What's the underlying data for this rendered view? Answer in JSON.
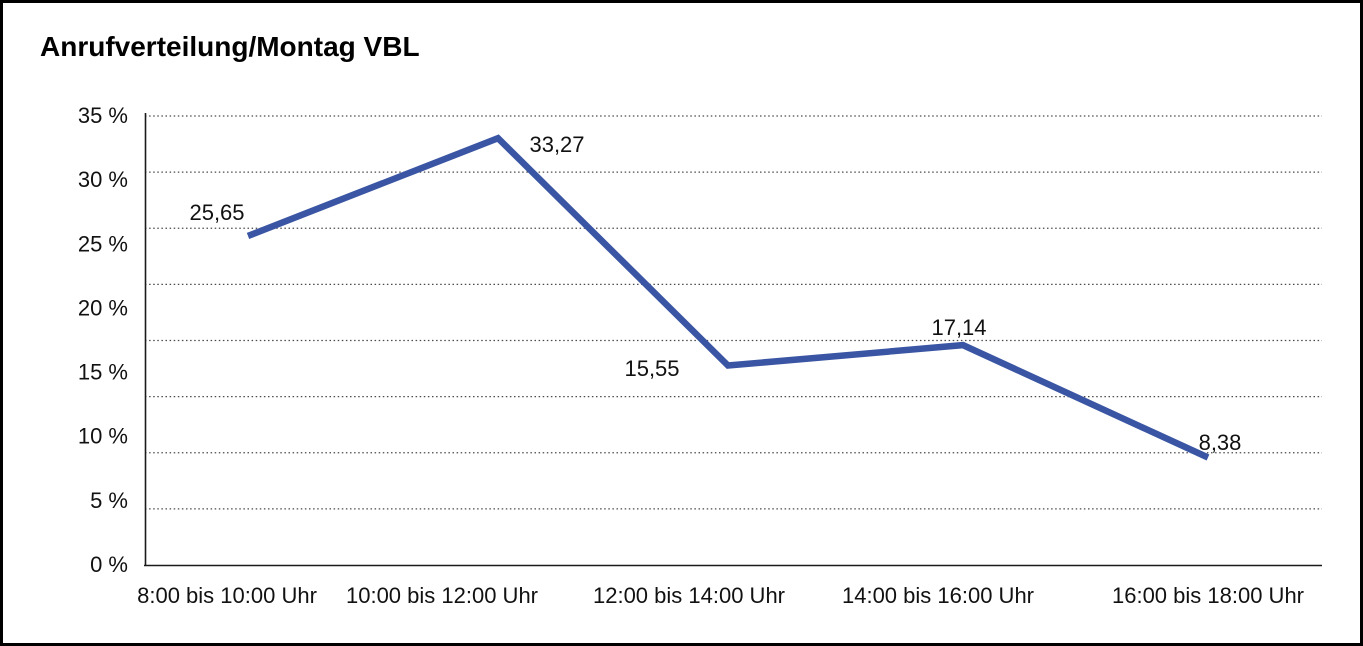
{
  "window": {
    "background_color": "#ffffff",
    "border_color": "#000000"
  },
  "chart_data": {
    "type": "line",
    "title": "Anrufverteilung/Montag VBL",
    "categories": [
      "8:00 bis 10:00 Uhr",
      "10:00 bis 12:00 Uhr",
      "12:00 bis 14:00 Uhr",
      "14:00 bis 16:00 Uhr",
      "16:00 bis 18:00 Uhr"
    ],
    "values": [
      25.65,
      33.27,
      15.55,
      17.14,
      8.38
    ],
    "point_labels": [
      "25,65",
      "33,27",
      "15,55",
      "17,14",
      "8,38"
    ],
    "y_tick_labels": [
      "35 %",
      "30 %",
      "25 %",
      "20 %",
      "15 %",
      "10 %",
      "5 %",
      "0 %"
    ],
    "ylim": [
      0,
      35
    ],
    "y_step": 5,
    "xlabel": "",
    "ylabel": "",
    "grid": "dotted-horizontal",
    "legend": "none",
    "line_color": "#3A55A3",
    "axis_color": "#1a1a1a",
    "grid_color": "#4a4a4a",
    "text_color": "#111111"
  }
}
